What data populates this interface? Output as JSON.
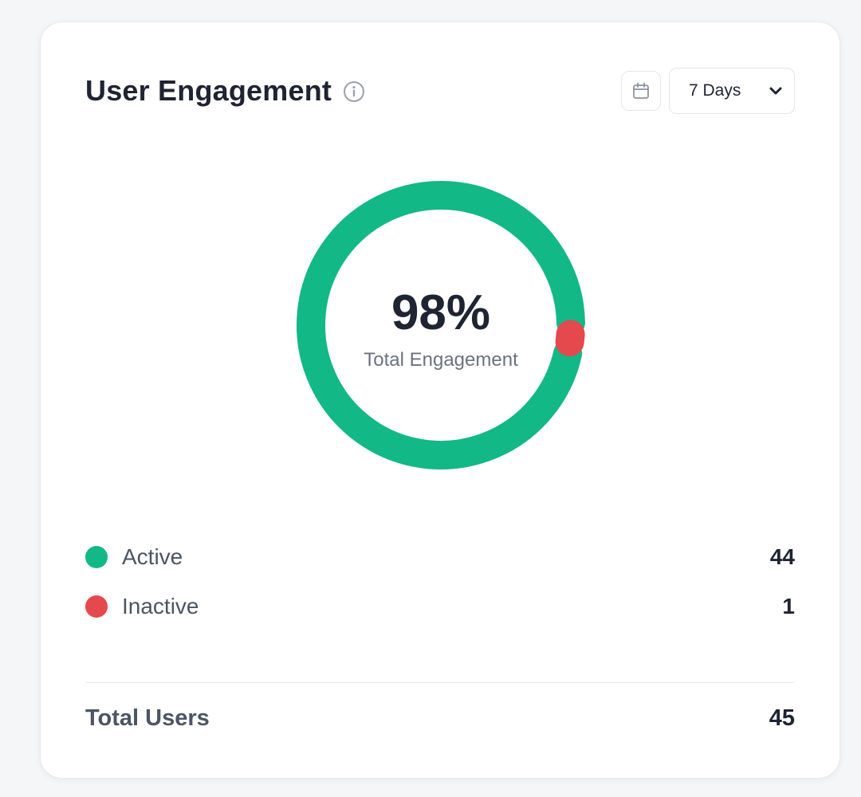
{
  "card": {
    "title": "User Engagement",
    "info_icon": "info-icon",
    "calendar_icon": "calendar-icon",
    "range_select": {
      "value": "7 Days",
      "icon": "chevron-down-icon"
    }
  },
  "donut": {
    "center_value": "98%",
    "center_label": "Total Engagement"
  },
  "legend": [
    {
      "label": "Active",
      "value": "44",
      "color": "#12b886"
    },
    {
      "label": "Inactive",
      "value": "1",
      "color": "#e5484d"
    }
  ],
  "summary": {
    "label": "Total Users",
    "value": "45"
  },
  "chart_data": {
    "type": "pie",
    "categories": [
      "Active",
      "Inactive"
    ],
    "values": [
      44,
      1
    ],
    "colors": [
      "#12b886",
      "#e5484d"
    ],
    "center_text": "98%",
    "center_subtext": "Total Engagement"
  }
}
